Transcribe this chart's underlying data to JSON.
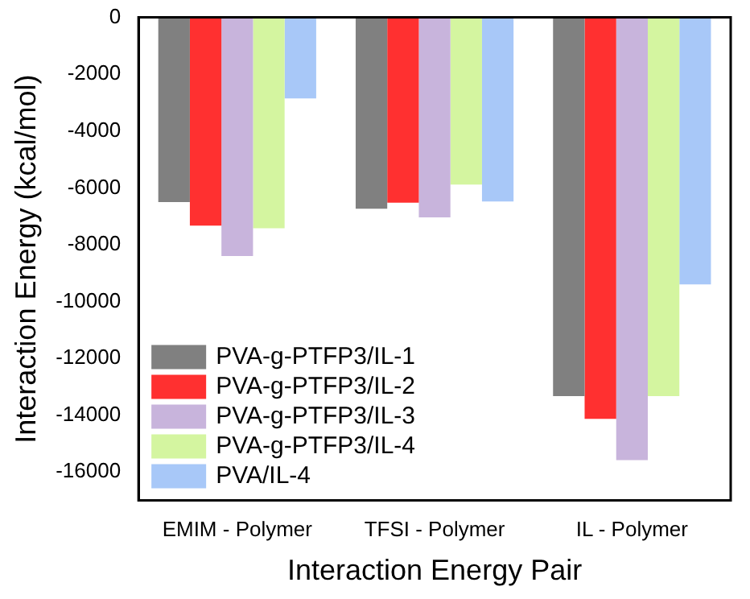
{
  "chart_data": {
    "type": "bar",
    "xlabel": "Interaction Energy Pair",
    "ylabel": "Interaction Energy (kcal/mol)",
    "categories": [
      "EMIM - Polymer",
      "TFSI - Polymer",
      "IL - Polymer"
    ],
    "series": [
      {
        "name": "PVA-g-PTFP3/IL-1",
        "color": "#808080",
        "values": [
          -6500,
          -6730,
          -13330
        ]
      },
      {
        "name": "PVA-g-PTFP3/IL-2",
        "color": "#ff3030",
        "values": [
          -7330,
          -6520,
          -14130
        ]
      },
      {
        "name": "PVA-g-PTFP3/IL-3",
        "color": "#c8b4dc",
        "values": [
          -8400,
          -7040,
          -15580
        ]
      },
      {
        "name": "PVA-g-PTFP3/IL-4",
        "color": "#d4f5a0",
        "values": [
          -7420,
          -5880,
          -13330
        ]
      },
      {
        "name": "PVA/IL-4",
        "color": "#a8c8f8",
        "values": [
          -2850,
          -6480,
          -9400
        ]
      }
    ],
    "ylim": [
      -17000,
      0
    ],
    "yticks": [
      0,
      -2000,
      -4000,
      -6000,
      -8000,
      -10000,
      -12000,
      -14000,
      -16000
    ],
    "grid": false,
    "legend": "bottom left"
  }
}
